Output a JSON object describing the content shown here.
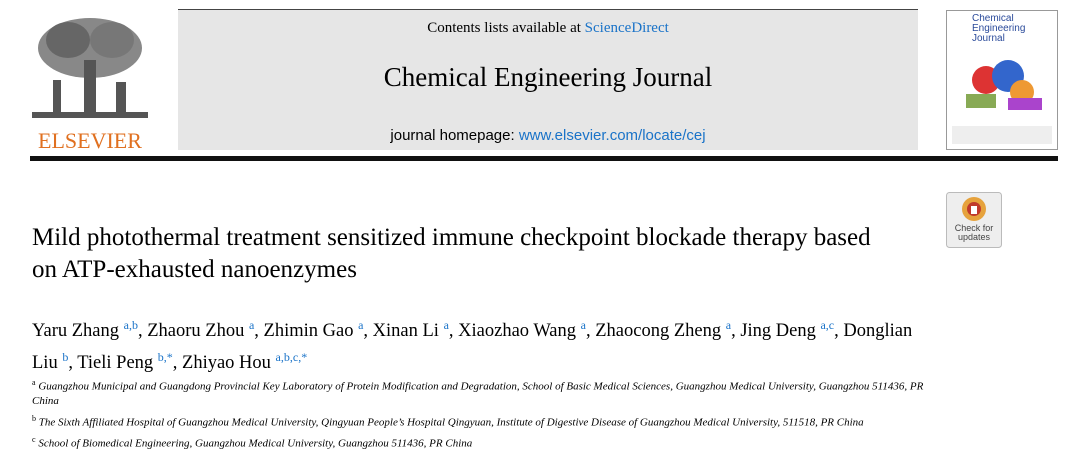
{
  "header": {
    "contents_prefix": "Contents lists available at",
    "contents_link": "ScienceDirect",
    "journal": "Chemical Engineering Journal",
    "homepage_prefix": "journal homepage:",
    "homepage_link": "www.elsevier.com/locate/cej",
    "publisher": "ELSEVIER",
    "cover_title": "Chemical Engineering Journal",
    "badge": "Check for updates"
  },
  "article": {
    "title": "Mild photothermal treatment sensitized immune checkpoint blockade therapy based on ATP-exhausted nanoenzymes",
    "authors": [
      {
        "name": "Yaru Zhang",
        "sup": "a,b",
        "punct": ","
      },
      {
        "name": "Zhaoru Zhou",
        "sup": "a",
        "punct": ","
      },
      {
        "name": "Zhimin Gao",
        "sup": "a",
        "punct": ","
      },
      {
        "name": "Xinan Li",
        "sup": "a",
        "punct": ","
      },
      {
        "name": "Xiaozhao Wang",
        "sup": "a",
        "punct": ","
      },
      {
        "name": "Zhaocong Zheng",
        "sup": "a",
        "punct": ","
      },
      {
        "name": "Jing Deng",
        "sup": "a,c",
        "punct": ","
      },
      {
        "name": "Donglian Liu",
        "sup": "b",
        "punct": ","
      },
      {
        "name": "Tieli Peng",
        "sup": "b,*",
        "punct": ","
      },
      {
        "name": "Zhiyao Hou",
        "sup": "a,b,c,*",
        "punct": ""
      }
    ],
    "affiliations": [
      {
        "label": "a",
        "text": "Guangzhou Municipal and Guangdong Provincial Key Laboratory of Protein Modification and Degradation, School of Basic Medical Sciences, Guangzhou Medical University, Guangzhou 511436, PR China"
      },
      {
        "label": "b",
        "text": "The Sixth Affiliated Hospital of Guangzhou Medical University, Qingyuan People’s Hospital Qingyuan, Institute of Digestive Disease of Guangzhou Medical University, 511518, PR China"
      },
      {
        "label": "c",
        "text": "School of Biomedical Engineering, Guangzhou Medical University, Guangzhou 511436, PR China"
      }
    ]
  }
}
